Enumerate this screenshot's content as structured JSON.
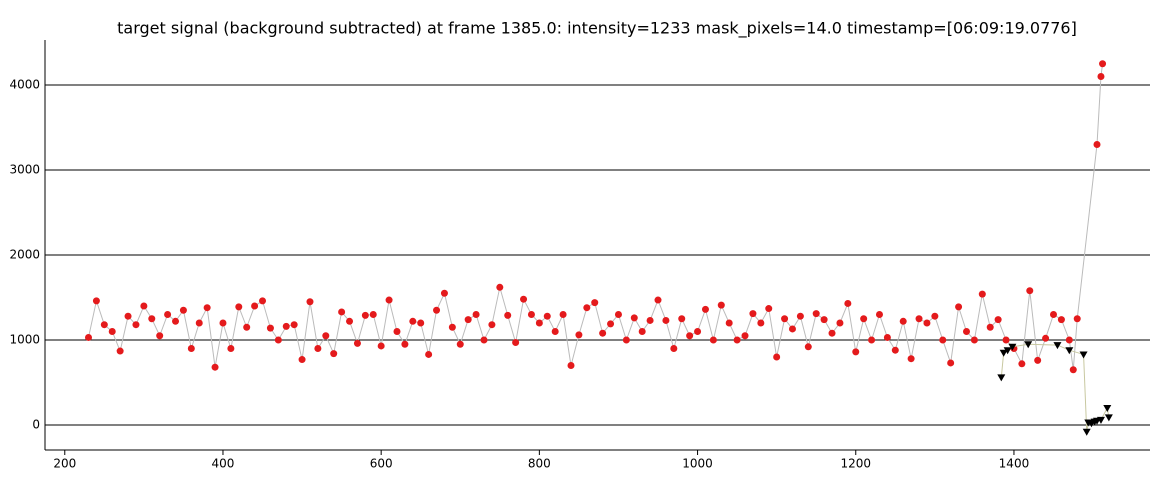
{
  "chart_data": {
    "type": "scatter",
    "title": "target signal (background subtracted) at frame 1385.0: intensity=1233 mask_pixels=14.0 timestamp=[06:09:19.0776]",
    "xlim": [
      175,
      1572
    ],
    "ylim": [
      -294,
      4529
    ],
    "xticks": [
      200,
      400,
      600,
      800,
      1000,
      1200,
      1400
    ],
    "yticks": [
      0,
      1000,
      2000,
      3000,
      4000
    ],
    "grid": true,
    "series": [
      {
        "color": "#e41a1c",
        "marker": "circle",
        "x": [
          230,
          240,
          250,
          260,
          270,
          280,
          290,
          300,
          310,
          320,
          330,
          340,
          350,
          360,
          370,
          380,
          390,
          400,
          410,
          420,
          430,
          440,
          450,
          460,
          470,
          480,
          490,
          500,
          510,
          520,
          530,
          540,
          550,
          560,
          570,
          580,
          590,
          600,
          610,
          620,
          630,
          640,
          650,
          660,
          670,
          680,
          690,
          700,
          710,
          720,
          730,
          740,
          750,
          760,
          770,
          780,
          790,
          800,
          810,
          820,
          830,
          840,
          850,
          860,
          870,
          880,
          890,
          900,
          910,
          920,
          930,
          940,
          950,
          960,
          970,
          980,
          990,
          1000,
          1010,
          1020,
          1030,
          1040,
          1050,
          1060,
          1070,
          1080,
          1090,
          1100,
          1110,
          1120,
          1130,
          1140,
          1150,
          1160,
          1170,
          1180,
          1190,
          1200,
          1210,
          1220,
          1230,
          1240,
          1250,
          1260,
          1270,
          1280,
          1290,
          1300,
          1310,
          1320,
          1330,
          1340,
          1350,
          1360,
          1370,
          1380,
          1390,
          1400,
          1410,
          1420,
          1430,
          1440,
          1450,
          1460,
          1470,
          1475,
          1480,
          1505,
          1510,
          1512
        ],
        "values": [
          1030,
          1460,
          1180,
          1100,
          870,
          1280,
          1180,
          1400,
          1250,
          1050,
          1300,
          1220,
          1350,
          900,
          1200,
          1380,
          680,
          1200,
          900,
          1390,
          1150,
          1400,
          1460,
          1140,
          1000,
          1160,
          1180,
          770,
          1450,
          900,
          1050,
          840,
          1330,
          1220,
          960,
          1290,
          1300,
          930,
          1470,
          1100,
          950,
          1220,
          1200,
          830,
          1350,
          1550,
          1150,
          950,
          1240,
          1300,
          1000,
          1180,
          1620,
          1290,
          970,
          1480,
          1300,
          1200,
          1280,
          1100,
          1300,
          700,
          1060,
          1380,
          1440,
          1080,
          1190,
          1300,
          1000,
          1260,
          1100,
          1230,
          1470,
          1230,
          900,
          1250,
          1050,
          1100,
          1360,
          1000,
          1410,
          1200,
          1000,
          1050,
          1310,
          1200,
          1370,
          800,
          1250,
          1130,
          1280,
          920,
          1310,
          1240,
          1080,
          1200,
          1430,
          860,
          1250,
          1000,
          1300,
          1030,
          880,
          1220,
          780,
          1250,
          1200,
          1280,
          1000,
          730,
          1390,
          1100,
          1000,
          1540,
          1150,
          1240,
          1000,
          900,
          720,
          1580,
          760,
          1020,
          1300,
          1240,
          1000,
          650,
          1250,
          3300,
          4100,
          4250
        ]
      },
      {
        "color": "#000000",
        "marker": "triangle",
        "x": [
          1384,
          1387,
          1392,
          1398,
          1418,
          1455,
          1470,
          1488,
          1492,
          1494,
          1498,
          1502,
          1505,
          1510,
          1518,
          1520
        ],
        "values": [
          560,
          850,
          880,
          920,
          950,
          940,
          880,
          830,
          -80,
          30,
          20,
          40,
          50,
          60,
          200,
          90
        ]
      }
    ]
  }
}
